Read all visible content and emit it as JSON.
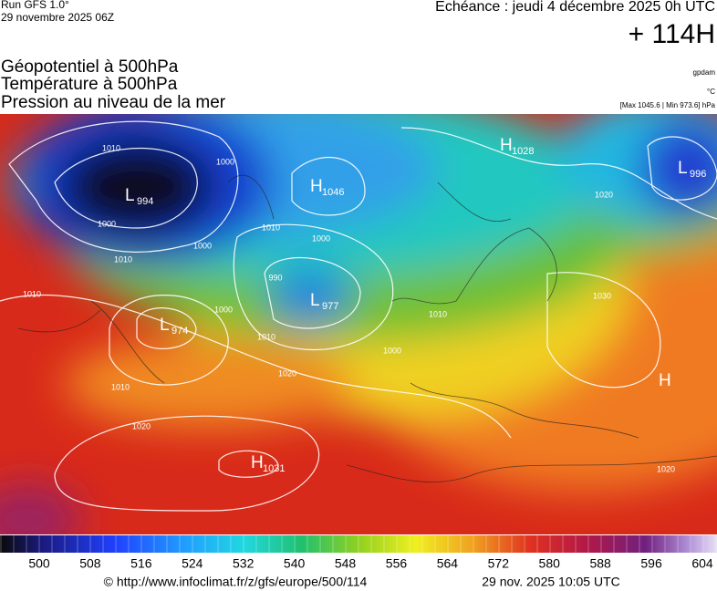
{
  "header": {
    "run": "Run GFS 1.0°",
    "date": "29 novembre 2025 06Z",
    "echeance": "Echéance : jeudi 4 décembre 2025 0h UTC",
    "lead": "+ 114H"
  },
  "titles": [
    "Géopotentiel à 500hPa",
    "Température à 500hPa",
    "Pression au niveau de la mer"
  ],
  "units": [
    "gpdam",
    "°C",
    "[Max 1045.6 | Min 973.6] hPa"
  ],
  "centers": [
    {
      "letter": "L",
      "value": "994"
    },
    {
      "letter": "H",
      "value": "1046"
    },
    {
      "letter": "L",
      "value": "977"
    },
    {
      "letter": "L",
      "value": "974"
    },
    {
      "letter": "H",
      "value": "1028"
    },
    {
      "letter": "L",
      "value": "996"
    },
    {
      "letter": "H",
      "value": "1031"
    },
    {
      "letter": "H"
    }
  ],
  "isobar_labels": [
    "1010",
    "1000",
    "1000",
    "1010",
    "1000",
    "1010",
    "990",
    "1000",
    "1010",
    "1000",
    "1010",
    "1000",
    "1010",
    "1020",
    "1020",
    "1030",
    "1020",
    "1020",
    "1010"
  ],
  "colorbar": {
    "ticks": [
      500,
      508,
      516,
      524,
      532,
      540,
      548,
      556,
      564,
      572,
      580,
      588,
      596,
      604
    ]
  },
  "footer": {
    "source": "© http://www.infoclimat.fr/z/gfs/europe/500/114",
    "generated": "29 nov. 2025 10:05 UTC"
  }
}
